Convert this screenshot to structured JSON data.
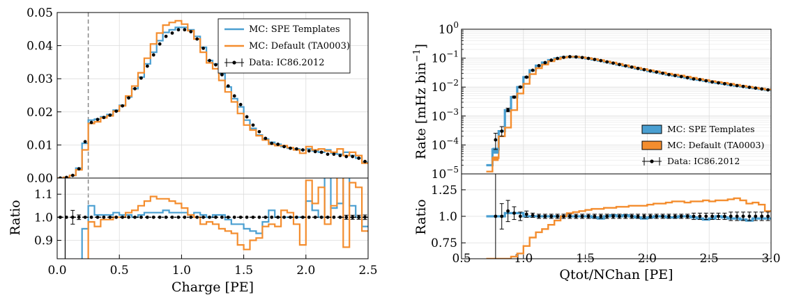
{
  "colors": {
    "blue": "#4a9fd1",
    "orange": "#f48d2e",
    "data": "#000000"
  },
  "chart_data": [
    {
      "type": "line",
      "panel": "left",
      "xlabel": "Charge [PE]",
      "ylabel_bottom": "Ratio",
      "xlim": [
        0.0,
        2.5
      ],
      "ylim_top": [
        0.0,
        0.05
      ],
      "ylim_bottom": [
        0.82,
        1.17
      ],
      "x_ticks": [
        "0.0",
        "0.5",
        "1.0",
        "1.5",
        "2.0",
        "2.5"
      ],
      "y_ticks_top": [
        "0.00",
        "0.01",
        "0.02",
        "0.03",
        "0.04",
        "0.05"
      ],
      "y_ticks_bottom": [
        "0.9",
        "1.0",
        "1.1"
      ],
      "threshold_x": 0.25,
      "legend": {
        "placement": "top-right",
        "entries": [
          "MC: SPE Templates",
          "MC: Default (TA0003)",
          "Data: IC86.2012"
        ]
      },
      "bin_edges": [
        0.0,
        0.05,
        0.1,
        0.15,
        0.2,
        0.25,
        0.3,
        0.35,
        0.4,
        0.45,
        0.5,
        0.55,
        0.6,
        0.65,
        0.7,
        0.75,
        0.8,
        0.85,
        0.9,
        0.95,
        1.0,
        1.05,
        1.1,
        1.15,
        1.2,
        1.25,
        1.3,
        1.35,
        1.4,
        1.45,
        1.5,
        1.55,
        1.6,
        1.65,
        1.7,
        1.75,
        1.8,
        1.85,
        1.9,
        1.95,
        2.0,
        2.05,
        2.1,
        2.15,
        2.2,
        2.25,
        2.3,
        2.35,
        2.4,
        2.45,
        2.5
      ],
      "series": [
        {
          "name": "MC: SPE Templates",
          "color": "blue",
          "values": [
            0.0,
            0.0002,
            0.0008,
            0.003,
            0.0105,
            0.0175,
            0.0178,
            0.0185,
            0.0192,
            0.0205,
            0.022,
            0.0245,
            0.027,
            0.0305,
            0.0345,
            0.038,
            0.0415,
            0.044,
            0.0448,
            0.0455,
            0.0455,
            0.0448,
            0.0428,
            0.0395,
            0.0355,
            0.0345,
            0.0315,
            0.0275,
            0.024,
            0.0215,
            0.0175,
            0.015,
            0.013,
            0.0118,
            0.0108,
            0.0102,
            0.0095,
            0.009,
            0.0088,
            0.0085,
            0.0088,
            0.0082,
            0.0078,
            0.0085,
            0.0075,
            0.0072,
            0.0078,
            0.0068,
            0.006,
            0.0048
          ]
        },
        {
          "name": "MC: Default (TA0003)",
          "color": "orange",
          "values": [
            0.0,
            0.0002,
            0.0008,
            0.0025,
            0.0085,
            0.0165,
            0.017,
            0.0182,
            0.0188,
            0.0202,
            0.0218,
            0.0248,
            0.0278,
            0.0318,
            0.0362,
            0.0405,
            0.0438,
            0.0462,
            0.047,
            0.0475,
            0.0465,
            0.0445,
            0.042,
            0.038,
            0.0348,
            0.033,
            0.0295,
            0.026,
            0.023,
            0.0195,
            0.016,
            0.0145,
            0.0128,
            0.0115,
            0.0102,
            0.0098,
            0.0098,
            0.0092,
            0.0085,
            0.0075,
            0.0095,
            0.0085,
            0.0088,
            0.0082,
            0.0078,
            0.0088,
            0.0068,
            0.0078,
            0.0068,
            0.0045
          ]
        }
      ],
      "data_points": {
        "name": "Data: IC86.2012",
        "x": [
          0.025,
          0.075,
          0.125,
          0.175,
          0.225,
          0.275,
          0.325,
          0.375,
          0.425,
          0.475,
          0.525,
          0.575,
          0.625,
          0.675,
          0.725,
          0.775,
          0.825,
          0.875,
          0.925,
          0.975,
          1.025,
          1.075,
          1.125,
          1.175,
          1.225,
          1.275,
          1.325,
          1.375,
          1.425,
          1.475,
          1.525,
          1.575,
          1.625,
          1.675,
          1.725,
          1.775,
          1.825,
          1.875,
          1.925,
          1.975,
          2.025,
          2.075,
          2.125,
          2.175,
          2.225,
          2.275,
          2.325,
          2.375,
          2.425,
          2.475
        ],
        "y": [
          0.0,
          0.0002,
          0.0008,
          0.0028,
          0.011,
          0.0168,
          0.0177,
          0.0183,
          0.019,
          0.0202,
          0.0218,
          0.0242,
          0.027,
          0.0302,
          0.0338,
          0.0372,
          0.0405,
          0.0428,
          0.0438,
          0.0448,
          0.0448,
          0.0442,
          0.042,
          0.0392,
          0.0355,
          0.0342,
          0.0312,
          0.0278,
          0.0248,
          0.0222,
          0.0185,
          0.016,
          0.014,
          0.012,
          0.0105,
          0.0102,
          0.0095,
          0.009,
          0.0088,
          0.0085,
          0.0082,
          0.008,
          0.0078,
          0.0072,
          0.0072,
          0.0068,
          0.0065,
          0.0065,
          0.006,
          0.005
        ],
        "ratio_err": [
          0.0,
          0.0,
          0.03,
          0.01,
          0.006,
          0.005,
          0.005,
          0.005,
          0.005,
          0.005,
          0.005,
          0.005,
          0.005,
          0.005,
          0.005,
          0.005,
          0.005,
          0.005,
          0.005,
          0.005,
          0.005,
          0.005,
          0.005,
          0.005,
          0.005,
          0.005,
          0.005,
          0.005,
          0.005,
          0.005,
          0.005,
          0.005,
          0.005,
          0.005,
          0.005,
          0.006,
          0.006,
          0.006,
          0.006,
          0.007,
          0.007,
          0.007,
          0.007,
          0.008,
          0.008,
          0.008,
          0.009,
          0.009,
          0.009,
          0.01
        ]
      },
      "ratio_series": [
        {
          "name": "MC: SPE Templates",
          "color": "blue",
          "values": [
            0.72,
            0.72,
            0.72,
            0.72,
            0.95,
            1.05,
            1.01,
            1.01,
            1.01,
            1.02,
            1.01,
            1.01,
            1.0,
            1.01,
            1.02,
            1.02,
            1.02,
            1.03,
            1.02,
            1.02,
            1.02,
            1.01,
            1.02,
            1.01,
            1.0,
            1.01,
            1.01,
            0.99,
            0.97,
            0.97,
            0.95,
            0.94,
            0.93,
            0.98,
            1.03,
            1.0,
            1.0,
            1.0,
            1.0,
            1.0,
            1.07,
            1.03,
            1.0,
            1.18,
            1.04,
            1.06,
            1.2,
            1.05,
            1.0,
            0.96
          ]
        },
        {
          "name": "MC: Default (TA0003)",
          "color": "orange",
          "values": [
            0.72,
            0.72,
            0.72,
            0.72,
            0.8,
            0.98,
            0.96,
            0.99,
            0.99,
            1.0,
            1.0,
            1.02,
            1.03,
            1.05,
            1.07,
            1.09,
            1.08,
            1.08,
            1.07,
            1.06,
            1.04,
            1.01,
            1.0,
            0.97,
            0.98,
            0.97,
            0.95,
            0.94,
            0.93,
            0.88,
            0.86,
            0.9,
            0.91,
            0.96,
            0.97,
            0.96,
            1.03,
            1.02,
            0.97,
            0.88,
            1.16,
            1.06,
            1.13,
            0.97,
            1.05,
            1.22,
            0.87,
            1.15,
            1.13,
            0.94
          ]
        }
      ]
    },
    {
      "type": "line",
      "panel": "right",
      "xlabel": "Qtot/NChan [PE]",
      "ylabel_top": "Rate [mHz bin",
      "ylabel_top_suffix": "]",
      "ylabel_top_exponent": "−1",
      "ylabel_bottom": "Ratio",
      "xlim": [
        0.5,
        3.0
      ],
      "yscale_top": "log",
      "ylim_top": [
        1e-05,
        1.0
      ],
      "ylim_bottom": [
        0.6,
        1.4
      ],
      "x_ticks": [
        "0.5",
        "1.0",
        "1.5",
        "2.0",
        "2.5",
        "3.0"
      ],
      "y_ticks_top": [
        {
          "base": "10",
          "exp": "−5"
        },
        {
          "base": "10",
          "exp": "−4"
        },
        {
          "base": "10",
          "exp": "−3"
        },
        {
          "base": "10",
          "exp": "−2"
        },
        {
          "base": "10",
          "exp": "−1"
        },
        {
          "base": "10",
          "exp": "0"
        }
      ],
      "y_ticks_bottom": [
        "0.75",
        "1.0",
        "1.25"
      ],
      "legend": {
        "placement": "center-right",
        "entries": [
          "MC: SPE Templates",
          "MC: Default (TA0003)",
          "Data: IC86.2012"
        ]
      },
      "bin_edges": [
        0.7,
        0.75,
        0.8,
        0.85,
        0.9,
        0.95,
        1.0,
        1.05,
        1.1,
        1.15,
        1.2,
        1.25,
        1.3,
        1.35,
        1.4,
        1.45,
        1.5,
        1.55,
        1.6,
        1.65,
        1.7,
        1.75,
        1.8,
        1.85,
        1.9,
        1.95,
        2.0,
        2.05,
        2.1,
        2.15,
        2.2,
        2.25,
        2.3,
        2.35,
        2.4,
        2.45,
        2.5,
        2.55,
        2.6,
        2.65,
        2.7,
        2.75,
        2.8,
        2.85,
        2.9,
        2.95,
        3.0
      ],
      "series": [
        {
          "name": "MC: SPE Templates",
          "color": "blue",
          "values": [
            2e-05,
            7e-05,
            0.0003,
            0.0016,
            0.0045,
            0.01,
            0.022,
            0.038,
            0.055,
            0.07,
            0.085,
            0.098,
            0.107,
            0.112,
            0.11,
            0.105,
            0.098,
            0.09,
            0.082,
            0.074,
            0.067,
            0.06,
            0.054,
            0.049,
            0.044,
            0.04,
            0.036,
            0.033,
            0.03,
            0.027,
            0.025,
            0.023,
            0.021,
            0.019,
            0.018,
            0.0165,
            0.015,
            0.014,
            0.013,
            0.012,
            0.0112,
            0.0105,
            0.0098,
            0.0092,
            0.0086,
            0.008
          ]
        },
        {
          "name": "MC: Default (TA0003)",
          "color": "orange",
          "values": [
            1.2e-05,
            3.5e-05,
            0.0002,
            0.0004,
            0.0016,
            0.006,
            0.013,
            0.028,
            0.045,
            0.06,
            0.078,
            0.092,
            0.104,
            0.112,
            0.112,
            0.107,
            0.1,
            0.093,
            0.085,
            0.077,
            0.07,
            0.063,
            0.057,
            0.051,
            0.046,
            0.042,
            0.038,
            0.035,
            0.032,
            0.029,
            0.027,
            0.025,
            0.023,
            0.021,
            0.019,
            0.0175,
            0.016,
            0.015,
            0.014,
            0.013,
            0.012,
            0.011,
            0.0102,
            0.0095,
            0.0088,
            0.0082
          ]
        }
      ],
      "data_points": {
        "name": "Data: IC86.2012",
        "x": [
          0.775,
          0.825,
          0.875,
          0.925,
          0.975,
          1.025,
          1.075,
          1.125,
          1.175,
          1.225,
          1.275,
          1.325,
          1.375,
          1.425,
          1.475,
          1.525,
          1.575,
          1.625,
          1.675,
          1.725,
          1.775,
          1.825,
          1.875,
          1.925,
          1.975,
          2.025,
          2.075,
          2.125,
          2.175,
          2.225,
          2.275,
          2.325,
          2.375,
          2.425,
          2.475,
          2.525,
          2.575,
          2.625,
          2.675,
          2.725,
          2.775,
          2.825,
          2.875,
          2.925,
          2.975
        ],
        "y": [
          0.00015,
          0.0003,
          0.0016,
          0.0045,
          0.01,
          0.022,
          0.038,
          0.055,
          0.07,
          0.085,
          0.098,
          0.107,
          0.112,
          0.11,
          0.105,
          0.098,
          0.09,
          0.082,
          0.074,
          0.067,
          0.06,
          0.054,
          0.049,
          0.044,
          0.04,
          0.036,
          0.033,
          0.03,
          0.027,
          0.025,
          0.023,
          0.021,
          0.019,
          0.018,
          0.0165,
          0.015,
          0.014,
          0.013,
          0.012,
          0.0112,
          0.0105,
          0.0098,
          0.0092,
          0.0086,
          0.008
        ],
        "y_err_low": [
          8e-05,
          0.0001,
          0.0002,
          0.0003,
          0.0005,
          0.001,
          0.0015,
          0.002,
          0.002,
          0.002,
          0.002,
          0.002,
          0.002,
          0.002,
          0.002,
          0.002,
          0.002,
          0.002,
          0.0015,
          0.0015,
          0.0012,
          0.001,
          0.001,
          0.001,
          0.0008,
          0.0008,
          0.0007,
          0.0006,
          0.0006,
          0.0005,
          0.0005,
          0.0005,
          0.0004,
          0.0004,
          0.0004,
          0.0003,
          0.0003,
          0.0003,
          0.0003,
          0.0003,
          0.0003,
          0.0002,
          0.0002,
          0.0002,
          0.0002
        ],
        "ratio_y": [
          1.0,
          1.0,
          1.05,
          1.03,
          1.0,
          1.02,
          1.01,
          1.0,
          1.0,
          1.0,
          1.0,
          1.0,
          1.0,
          1.0,
          1.0,
          1.0,
          1.0,
          1.0,
          1.0,
          1.0,
          1.0,
          1.0,
          1.0,
          1.0,
          1.0,
          1.0,
          1.0,
          1.0,
          1.0,
          1.0,
          1.0,
          1.0,
          1.0,
          1.0,
          1.0,
          1.0,
          1.0,
          1.0,
          1.0,
          1.0,
          1.0,
          1.0,
          1.0,
          1.0,
          1.0
        ],
        "ratio_err": [
          0.45,
          0.12,
          0.1,
          0.06,
          0.04,
          0.03,
          0.02,
          0.02,
          0.02,
          0.02,
          0.02,
          0.02,
          0.02,
          0.02,
          0.02,
          0.02,
          0.02,
          0.02,
          0.02,
          0.02,
          0.02,
          0.02,
          0.02,
          0.02,
          0.02,
          0.02,
          0.02,
          0.02,
          0.02,
          0.02,
          0.02,
          0.02,
          0.03,
          0.03,
          0.03,
          0.03,
          0.03,
          0.03,
          0.04,
          0.04,
          0.04,
          0.04,
          0.04,
          0.04,
          0.04
        ]
      },
      "ratio_series": [
        {
          "name": "MC: SPE Templates",
          "color": "blue",
          "values": [
            1.0,
            1.0,
            1.0,
            1.03,
            1.03,
            1.03,
            1.0,
            1.0,
            1.0,
            1.0,
            1.0,
            1.0,
            1.0,
            1.0,
            1.0,
            1.0,
            1.0,
            0.99,
            0.98,
            1.0,
            1.01,
            1.0,
            1.01,
            1.0,
            0.99,
            0.98,
            0.99,
            1.0,
            1.0,
            0.99,
            0.99,
            1.0,
            1.0,
            0.99,
            0.98,
            0.97,
            0.98,
            1.0,
            0.99,
            0.98,
            0.98,
            0.97,
            0.96,
            0.98,
            0.98,
            0.98
          ]
        },
        {
          "name": "MC: Default (TA0003)",
          "color": "orange",
          "values": [
            0.6,
            0.6,
            0.6,
            0.6,
            0.62,
            0.65,
            0.72,
            0.8,
            0.85,
            0.88,
            0.92,
            0.96,
            1.0,
            1.03,
            1.04,
            1.05,
            1.06,
            1.07,
            1.07,
            1.08,
            1.08,
            1.09,
            1.09,
            1.1,
            1.1,
            1.1,
            1.11,
            1.12,
            1.12,
            1.13,
            1.14,
            1.14,
            1.13,
            1.14,
            1.14,
            1.15,
            1.14,
            1.15,
            1.15,
            1.16,
            1.17,
            1.15,
            1.12,
            1.13,
            1.11,
            1.05
          ]
        }
      ]
    }
  ]
}
